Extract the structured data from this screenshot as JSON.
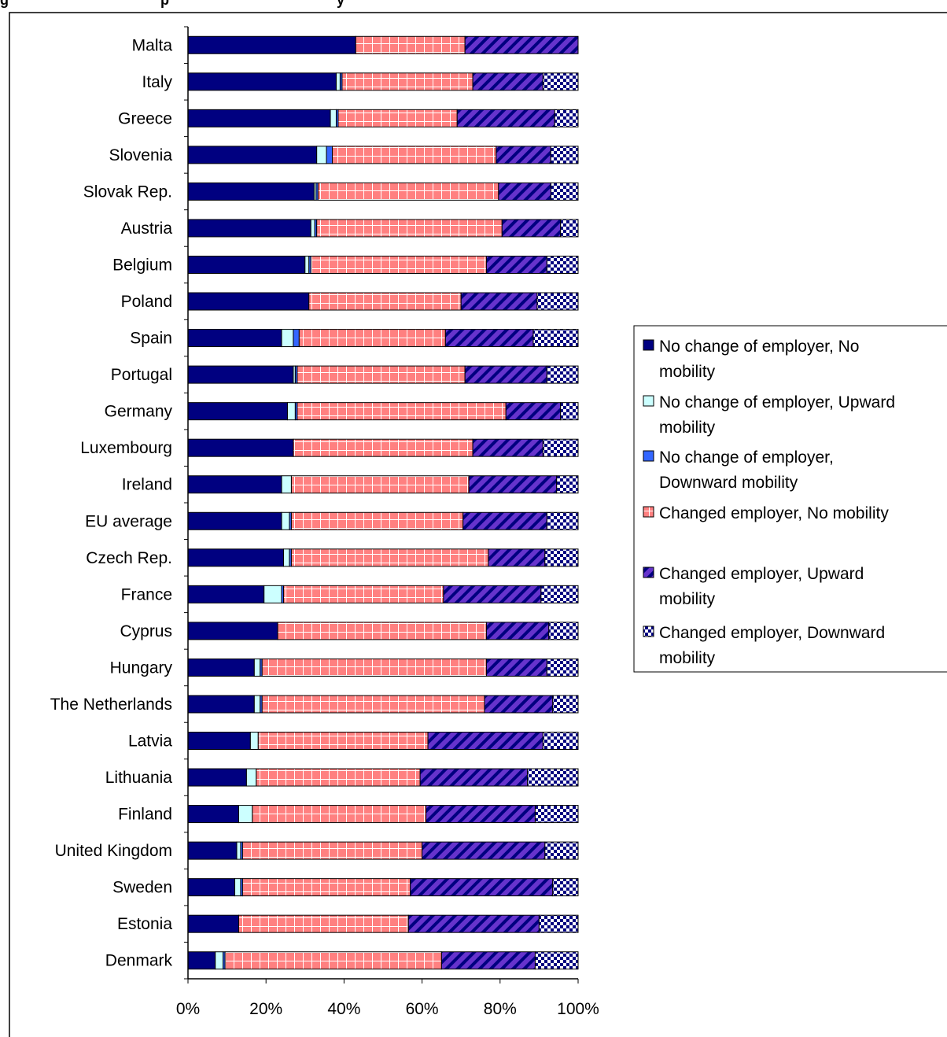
{
  "chart_data": {
    "type": "bar",
    "orientation": "horizontal",
    "stacked": "percent",
    "title_fragment": "g",
    "title_fragment_2": "p",
    "title_fragment_3": "y",
    "categories": [
      "Malta",
      "Italy",
      "Greece",
      "Slovenia",
      "Slovak Rep.",
      "Austria",
      "Belgium",
      "Poland",
      "Spain",
      "Portugal",
      "Germany",
      "Luxembourg",
      "Ireland",
      "EU average",
      "Czech Rep.",
      "France",
      "Cyprus",
      "Hungary",
      "The Netherlands",
      "Latvia",
      "Lithuania",
      "Finland",
      "United Kingdom",
      "Sweden",
      "Estonia",
      "Denmark"
    ],
    "series": [
      {
        "name": "No change of employer, No mobility",
        "color": "#000080",
        "pattern": "solid",
        "values": [
          43,
          38,
          36.5,
          33,
          32.5,
          31.5,
          30,
          31,
          24,
          27,
          25.5,
          27,
          24,
          24,
          24.5,
          19.5,
          23,
          17,
          17,
          16,
          15,
          13,
          12.5,
          12,
          13,
          7
        ]
      },
      {
        "name": "No change of employer, Upward mobility",
        "color": "#ccffff",
        "pattern": "solid",
        "values": [
          0,
          1,
          1.5,
          2.5,
          0.5,
          1,
          1,
          0,
          3,
          0.5,
          2,
          0,
          2.5,
          2,
          1.5,
          4.5,
          0,
          1.5,
          1.5,
          2,
          2.5,
          3.5,
          1,
          1.5,
          0,
          2
        ]
      },
      {
        "name": "No change of employer, Downward mobility",
        "color": "#3366ff",
        "pattern": "solid",
        "values": [
          0,
          0.5,
          0.5,
          1.5,
          0.5,
          0.5,
          0.5,
          0,
          1.5,
          0.5,
          0.5,
          0,
          0,
          0.5,
          0.5,
          0.5,
          0,
          0.5,
          0.5,
          0,
          0,
          0,
          0.5,
          0.5,
          0,
          0.5
        ]
      },
      {
        "name": "Changed employer, No mobility",
        "color": "#ff8080",
        "pattern": "grid",
        "values": [
          28,
          33.5,
          30.5,
          42,
          46.5,
          47.5,
          45,
          39,
          37.5,
          43,
          53.5,
          46,
          45.5,
          44,
          50.5,
          41,
          53.5,
          57.5,
          57,
          43.5,
          42,
          44.5,
          46,
          43,
          43.5,
          55.5
        ]
      },
      {
        "name": "Changed employer, Upward mobility",
        "color": "#6633cc",
        "pattern": "stripe",
        "values": [
          29,
          18,
          25,
          14,
          13.5,
          15,
          15.5,
          19.5,
          22.5,
          21,
          14,
          18,
          22.5,
          21.5,
          14.5,
          25,
          16,
          15.5,
          17.5,
          29.5,
          27.5,
          28,
          31.5,
          36.5,
          33.5,
          24
        ]
      },
      {
        "name": "Changed employer, Downward mobility",
        "color": "#000080",
        "pattern": "check",
        "values": [
          0,
          9,
          6,
          7,
          7,
          4.5,
          8,
          10.5,
          11.5,
          8,
          4.5,
          9,
          5.5,
          8,
          8.5,
          9.5,
          7.5,
          8,
          6.5,
          9,
          13,
          11,
          8.5,
          6.5,
          10,
          11
        ]
      }
    ],
    "xlim": [
      0,
      100
    ],
    "xticks": [
      "0%",
      "20%",
      "40%",
      "60%",
      "80%",
      "100%"
    ],
    "xlabel": "",
    "ylabel": "",
    "legend_position": "right",
    "grid": false
  }
}
